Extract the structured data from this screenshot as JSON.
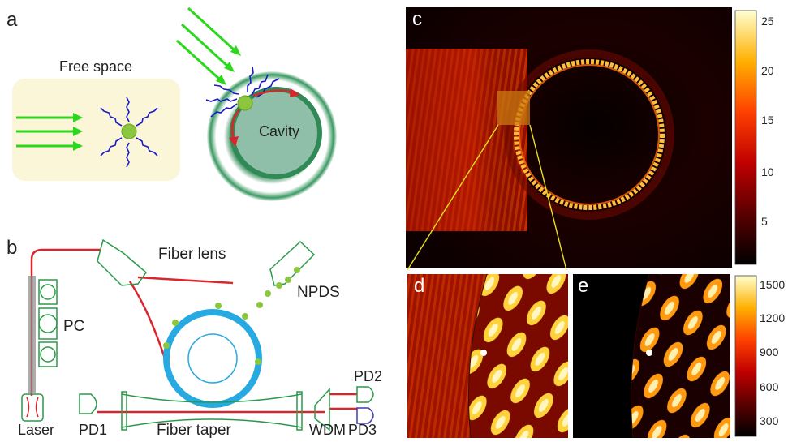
{
  "panels": {
    "a": {
      "letter": "a",
      "free_space_label": "Free space",
      "cavity_label": "Cavity"
    },
    "b": {
      "letter": "b",
      "labels": {
        "fiber_lens": "Fiber lens",
        "npds": "NPDS",
        "pc": "PC",
        "laser": "Laser",
        "pd1": "PD1",
        "fiber_taper": "Fiber taper",
        "wdm": "WDM",
        "pd2": "PD2",
        "pd3": "PD3"
      }
    },
    "c": {
      "letter": "c",
      "colorbar_ticks": [
        "25",
        "20",
        "15",
        "10",
        "5"
      ]
    },
    "d": {
      "letter": "d"
    },
    "e": {
      "letter": "e",
      "colorbar_ticks": [
        "1500",
        "1200",
        "900",
        "600",
        "300"
      ]
    }
  },
  "colors": {
    "green_beam": "#2bd81c",
    "scatter_blue": "#1a1ac8",
    "particle": "#8cc63f",
    "fiber_red": "#d9262c",
    "ring_blue": "#27a9e1",
    "cavity_green": "#2e8b57",
    "outline_green": "#2a9a4a"
  }
}
